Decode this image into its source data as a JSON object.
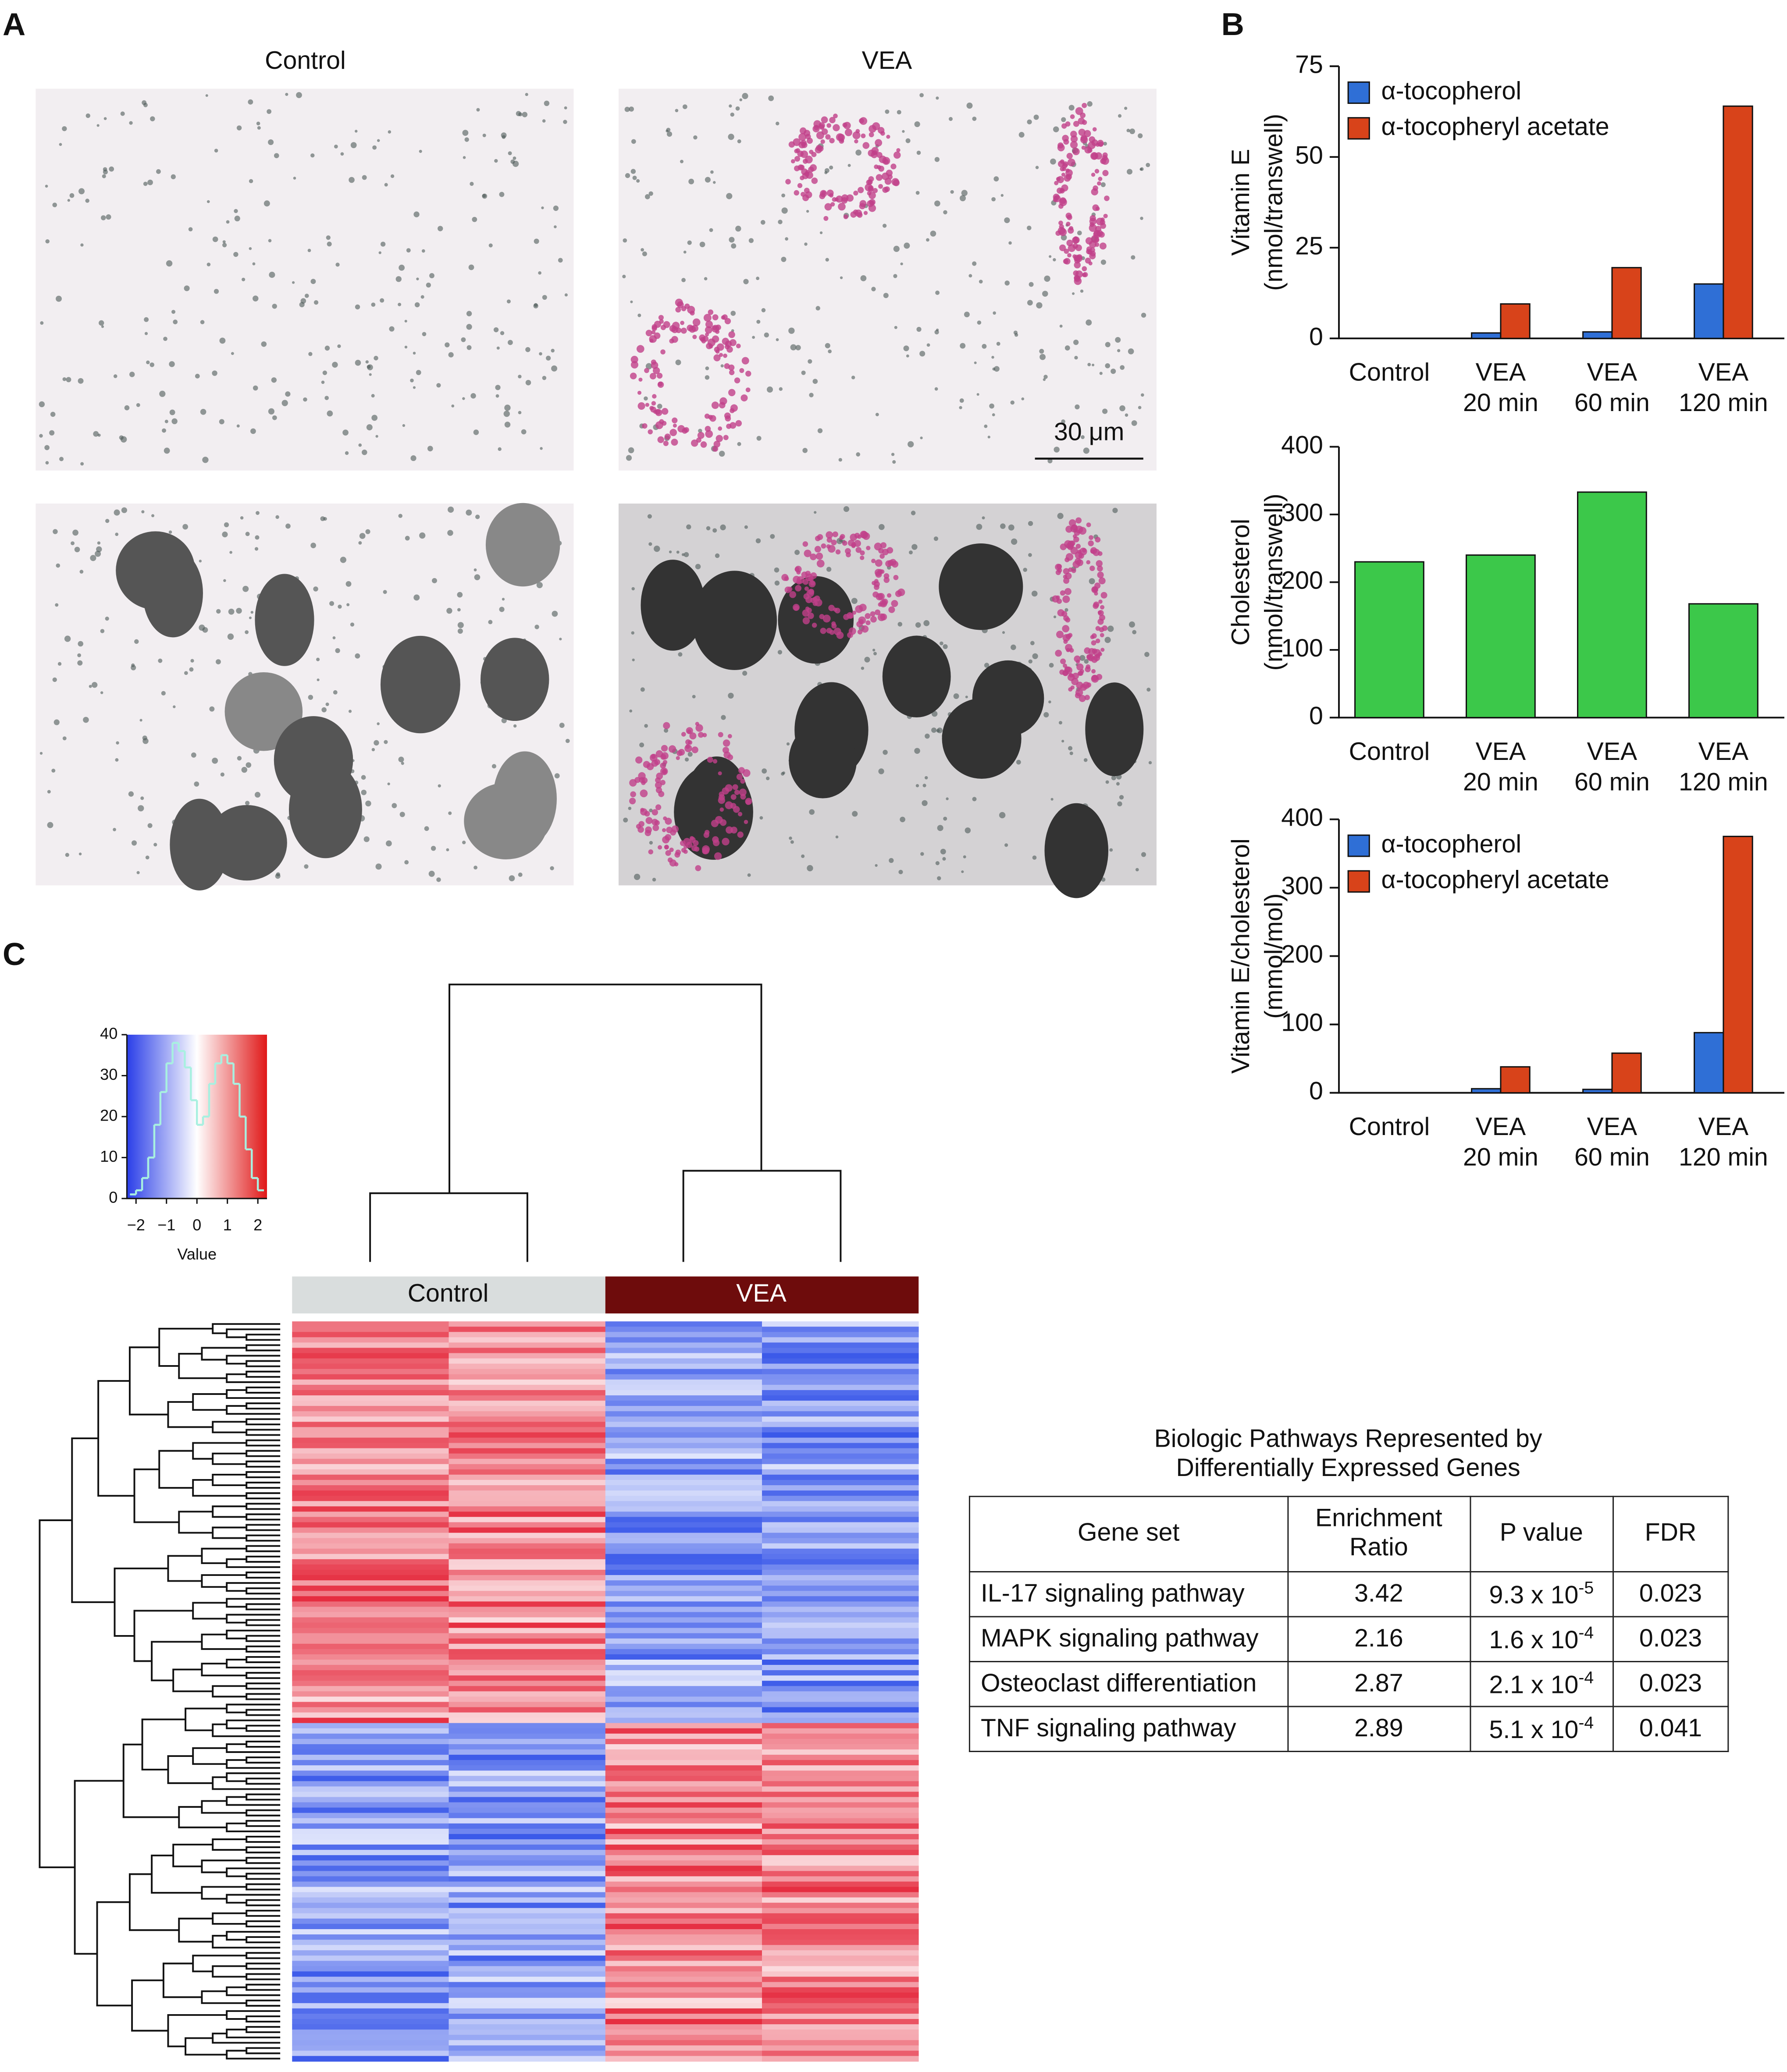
{
  "panel_labels": [
    "A",
    "B",
    "C"
  ],
  "micrographs": {
    "titles": [
      "Control",
      "VEA"
    ],
    "scale_bar": "30 μm"
  },
  "chart_data": [
    {
      "type": "bar",
      "ylabel": [
        "Vitamin E",
        "(nmol/transwell)"
      ],
      "categories": [
        [
          "Control"
        ],
        [
          "VEA",
          "20 min"
        ],
        [
          "VEA",
          "60 min"
        ],
        [
          "VEA",
          "120 min"
        ]
      ],
      "series": [
        {
          "name": "α-tocopherol",
          "color": "#2f6fd6",
          "values": [
            0,
            1.5,
            1.8,
            15
          ]
        },
        {
          "name": "α-tocopheryl acetate",
          "color": "#d8431a",
          "values": [
            0,
            9.5,
            19.5,
            64
          ]
        }
      ],
      "ylim": [
        0,
        75
      ],
      "yticks": [
        0,
        25,
        50,
        75
      ],
      "legend": "upper left"
    },
    {
      "type": "bar",
      "ylabel": [
        "Cholesterol",
        "(nmol/transwell)"
      ],
      "categories": [
        [
          "Control"
        ],
        [
          "VEA",
          "20 min"
        ],
        [
          "VEA",
          "60 min"
        ],
        [
          "VEA",
          "120 min"
        ]
      ],
      "values": [
        230,
        240,
        333,
        168
      ],
      "color": "#3cc84a",
      "ylim": [
        0,
        400
      ],
      "yticks": [
        0,
        100,
        200,
        300,
        400
      ]
    },
    {
      "type": "bar",
      "ylabel": [
        "Vitamin E/cholesterol",
        "(mmol/mol)"
      ],
      "categories": [
        [
          "Control"
        ],
        [
          "VEA",
          "20 min"
        ],
        [
          "VEA",
          "60 min"
        ],
        [
          "VEA",
          "120 min"
        ]
      ],
      "series": [
        {
          "name": "α-tocopherol",
          "color": "#2f6fd6",
          "values": [
            0,
            6,
            5,
            88
          ]
        },
        {
          "name": "α-tocopheryl acetate",
          "color": "#d8431a",
          "values": [
            0,
            38,
            58,
            375
          ]
        }
      ],
      "ylim": [
        0,
        400
      ],
      "yticks": [
        0,
        100,
        200,
        300,
        400
      ],
      "legend": "upper left"
    },
    {
      "type": "histogram",
      "xlabel": "Value",
      "color": "#a8f0e0",
      "bins": [
        -2.2,
        -2.0,
        -1.8,
        -1.6,
        -1.4,
        -1.2,
        -1.0,
        -0.8,
        -0.6,
        -0.4,
        -0.2,
        0.0,
        0.2,
        0.4,
        0.6,
        0.8,
        1.0,
        1.2,
        1.4,
        1.6,
        1.8,
        2.0,
        2.2
      ],
      "values": [
        1,
        2,
        5,
        10,
        18,
        26,
        33,
        38,
        36,
        32,
        24,
        18,
        20,
        28,
        33,
        35,
        33,
        28,
        20,
        12,
        5,
        2
      ],
      "xlim": [
        -2.3,
        2.3
      ],
      "xticks": [
        {
          "value": -2,
          "label": "−2"
        },
        {
          "value": -1,
          "label": "−1"
        },
        0,
        1,
        2
      ],
      "ylim": [
        0,
        40
      ],
      "yticks": [
        0,
        10,
        20,
        30,
        40
      ]
    }
  ],
  "heatmap": {
    "groups": [
      "Control",
      "VEA"
    ]
  },
  "pathway_table": {
    "title": [
      "Biologic Pathways Represented by",
      "Differentially Expressed Genes"
    ],
    "header": [
      "Gene set",
      "Enrichment Ratio",
      "P value",
      "FDR"
    ],
    "rows": [
      {
        "gene_set": "IL-17 signaling pathway",
        "enrichment_ratio": 3.42,
        "p_value": {
          "text": "9.3 x 10",
          "exponent": "-5"
        },
        "fdr": 0.023
      },
      {
        "gene_set": "MAPK signaling pathway",
        "enrichment_ratio": 2.16,
        "p_value": {
          "text": "1.6 x 10",
          "exponent": "-4"
        },
        "fdr": 0.023
      },
      {
        "gene_set": "Osteoclast differentiation",
        "enrichment_ratio": 2.87,
        "p_value": {
          "text": "2.1 x 10",
          "exponent": "-4"
        },
        "fdr": 0.023
      },
      {
        "gene_set": "TNF signaling pathway",
        "enrichment_ratio": 2.89,
        "p_value": {
          "text": "5.1 x 10",
          "exponent": "-4"
        },
        "fdr": 0.041
      }
    ]
  }
}
